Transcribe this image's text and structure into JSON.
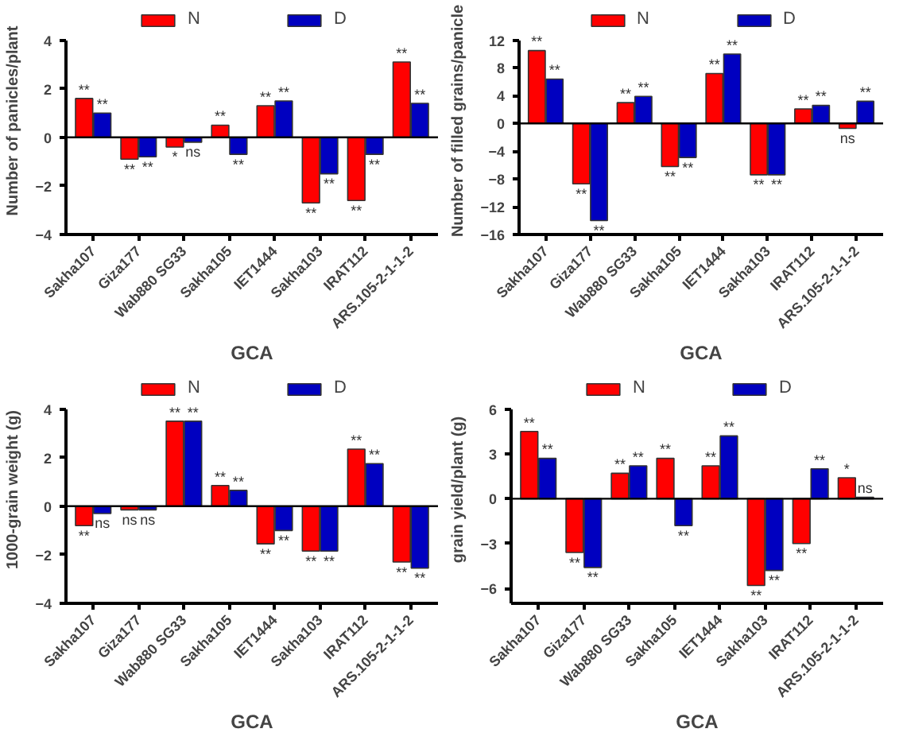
{
  "chart_data": [
    {
      "type": "bar",
      "ylabel": "Number of panicles/plant",
      "xlabel": "GCA",
      "categories": [
        "Sakha107",
        "Giza177",
        "Wab880 SG33",
        "Sakha105",
        "IET1444",
        "Sakha103",
        "IRAT112",
        "ARS.105-2-1-1-2"
      ],
      "ylim": [
        -4,
        4
      ],
      "yticks": [
        -4,
        -2,
        0,
        2,
        4
      ],
      "legend": "top",
      "grid": false,
      "ref_lines": [
        {
          "axis": "y",
          "value": 0
        }
      ],
      "series": [
        {
          "name": "N",
          "color": "#ff0000",
          "values": [
            1.6,
            -0.9,
            -0.4,
            0.5,
            1.3,
            -2.7,
            -2.6,
            3.1
          ],
          "value_labels": [
            "**",
            "**",
            "*",
            "**",
            "**",
            "**",
            "**",
            "**"
          ]
        },
        {
          "name": "D",
          "color": "#0000c0",
          "values": [
            1.0,
            -0.8,
            -0.2,
            -0.7,
            1.5,
            -1.5,
            -0.7,
            1.4
          ],
          "value_labels": [
            "**",
            "**",
            "ns",
            "**",
            "**",
            "**",
            "**",
            "**"
          ]
        }
      ]
    },
    {
      "type": "bar",
      "ylabel": "Number of filled grains/panicle",
      "xlabel": "GCA",
      "categories": [
        "Sakha107",
        "Giza177",
        "Wab880 SG33",
        "Sakha105",
        "IET1444",
        "Sakha103",
        "IRAT112",
        "ARS.105-2-1-1-2"
      ],
      "ylim": [
        -16,
        12
      ],
      "yticks": [
        -16,
        -12,
        -8,
        -4,
        0,
        4,
        8,
        12
      ],
      "legend": "top",
      "grid": false,
      "ref_lines": [
        {
          "axis": "y",
          "value": 0
        }
      ],
      "series": [
        {
          "name": "N",
          "color": "#ff0000",
          "values": [
            10.5,
            -8.7,
            3.0,
            -6.2,
            7.2,
            -7.4,
            2.1,
            -0.7
          ],
          "value_labels": [
            "**",
            "**",
            "**",
            "**",
            "**",
            "**",
            "**",
            "ns"
          ]
        },
        {
          "name": "D",
          "color": "#0000c0",
          "values": [
            6.4,
            -14,
            3.9,
            -4.9,
            10.0,
            -7.4,
            2.6,
            3.2
          ],
          "value_labels": [
            "**",
            "**",
            "**",
            "**",
            "**",
            "**",
            "**",
            "**"
          ]
        }
      ]
    },
    {
      "type": "bar",
      "ylabel": "1000-grain weight (g)",
      "xlabel": "GCA",
      "categories": [
        "Sakha107",
        "Giza177",
        "Wab880 SG33",
        "Sakha105",
        "IET1444",
        "Sakha103",
        "IRAT112",
        "ARS.105-2-1-1-2"
      ],
      "ylim": [
        -4,
        4
      ],
      "yticks": [
        -4,
        -2,
        0,
        2,
        4
      ],
      "legend": "top",
      "grid": false,
      "ref_lines": [
        {
          "axis": "y",
          "value": 0
        }
      ],
      "series": [
        {
          "name": "N",
          "color": "#ff0000",
          "values": [
            -0.8,
            -0.15,
            3.5,
            0.85,
            -1.55,
            -1.85,
            2.35,
            -2.3
          ],
          "value_labels": [
            "**",
            "ns",
            "**",
            "**",
            "**",
            "**",
            "**",
            "**"
          ]
        },
        {
          "name": "D",
          "color": "#0000c0",
          "values": [
            -0.3,
            -0.15,
            3.5,
            0.65,
            -1.0,
            -1.85,
            1.75,
            -2.55
          ],
          "value_labels": [
            "ns",
            "ns",
            "**",
            "**",
            "**",
            "**",
            "**",
            "**"
          ]
        }
      ]
    },
    {
      "type": "bar",
      "ylabel": "grain yield/plant (g)",
      "xlabel": "GCA",
      "categories": [
        "Sakha107",
        "Giza177",
        "Wab880 SG33",
        "Sakha105",
        "IET1444",
        "Sakha103",
        "IRAT112",
        "ARS.105-2-1-1-2"
      ],
      "ylim": [
        -7,
        6
      ],
      "yticks": [
        -6,
        -3,
        0,
        3,
        6
      ],
      "legend": "top",
      "grid": false,
      "ref_lines": [
        {
          "axis": "y",
          "value": 0
        }
      ],
      "series": [
        {
          "name": "N",
          "color": "#ff0000",
          "values": [
            4.5,
            -3.6,
            1.7,
            2.7,
            2.2,
            -5.8,
            -3.0,
            1.4
          ],
          "value_labels": [
            "**",
            "**",
            "**",
            "**",
            "**",
            "**",
            "**",
            "*"
          ]
        },
        {
          "name": "D",
          "color": "#0000c0",
          "values": [
            2.7,
            -4.6,
            2.2,
            -1.8,
            4.2,
            -4.8,
            2.0,
            0.1
          ],
          "value_labels": [
            "**",
            "**",
            "**",
            "**",
            "**",
            "**",
            "**",
            "ns"
          ]
        }
      ]
    }
  ]
}
